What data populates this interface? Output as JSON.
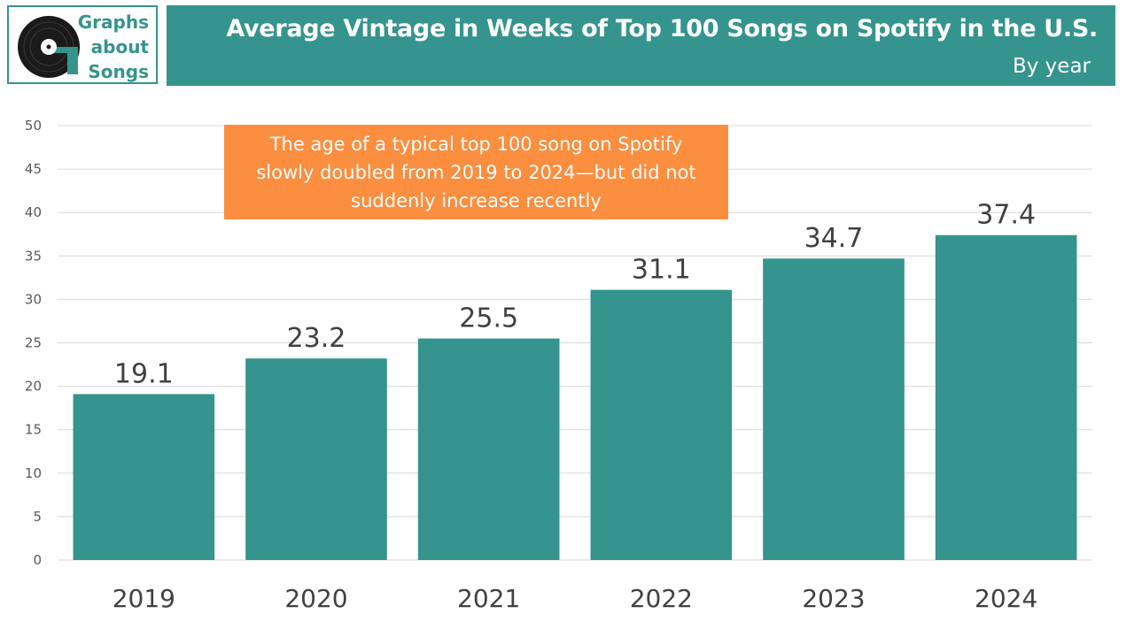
{
  "logo": {
    "line1": "Graphs",
    "line2": "about",
    "line3": "Songs"
  },
  "header": {
    "title": "Average Vintage in Weeks of Top 100 Songs on Spotify in the U.S.",
    "subtitle": "By year"
  },
  "annotation": "The age of a typical top 100 song on Spotify slowly doubled from 2019 to 2024—but did not suddenly increase recently",
  "colors": {
    "bar": "#35948d",
    "header": "#35948d",
    "annotation": "#fb8e3f",
    "grid": "#d9d9d9"
  },
  "chart_data": {
    "type": "bar",
    "title": "Average Vintage in Weeks of Top 100 Songs on Spotify in the U.S.",
    "subtitle": "By year",
    "xlabel": "",
    "ylabel": "",
    "categories": [
      "2019",
      "2020",
      "2021",
      "2022",
      "2023",
      "2024"
    ],
    "values": [
      19.1,
      23.2,
      25.5,
      31.1,
      34.7,
      37.4
    ],
    "value_labels": [
      "19.1",
      "23.2",
      "25.5",
      "31.1",
      "34.7",
      "37.4"
    ],
    "ylim": [
      0,
      50
    ],
    "yticks": [
      0,
      5,
      10,
      15,
      20,
      25,
      30,
      35,
      40,
      45,
      50
    ],
    "grid": true,
    "legend": "none"
  }
}
